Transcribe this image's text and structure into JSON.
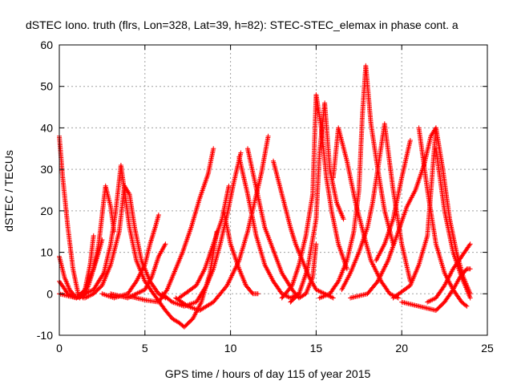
{
  "colors": {
    "series": "#ff0000",
    "grid": "#a0a0a0",
    "axis": "#000000"
  },
  "chart_data": {
    "type": "scatter",
    "title": "dSTEC Iono. truth (flrs, Lon=328, Lat=39, h=82): STEC-STEC_elemax in phase cont. a",
    "xlabel": "GPS time / hours of day 115 of year 2015",
    "ylabel": "dSTEC  / TECUs",
    "xlim": [
      0,
      25
    ],
    "ylim": [
      -10,
      60
    ],
    "xticks": [
      0,
      5,
      10,
      15,
      20,
      25
    ],
    "yticks": [
      -10,
      0,
      10,
      20,
      30,
      40,
      50,
      60
    ],
    "grid": true,
    "marker": "+",
    "series": [
      {
        "x": [
          0.0,
          0.2,
          0.5,
          0.8,
          1.1,
          1.4,
          1.7,
          2.0,
          2.3,
          2.5
        ],
        "y": [
          38,
          28,
          16,
          6,
          0,
          -1,
          2,
          6,
          10,
          13
        ]
      },
      {
        "x": [
          0.0,
          0.3,
          0.6,
          0.9,
          1.2,
          1.5,
          1.8,
          2.0
        ],
        "y": [
          9,
          4,
          1,
          -0.5,
          -1,
          1,
          7,
          14
        ]
      },
      {
        "x": [
          0.0,
          0.5,
          1.0,
          1.5,
          2.0,
          2.3,
          2.5,
          2.7,
          3.0,
          3.2
        ],
        "y": [
          3,
          0,
          -1,
          1,
          6,
          12,
          19,
          26,
          21,
          15
        ]
      },
      {
        "x": [
          0.0,
          1.0,
          2.0,
          2.6,
          3.0,
          3.3,
          3.6,
          3.8,
          4.1,
          4.5,
          5.0,
          5.5
        ],
        "y": [
          0,
          -1,
          1,
          5,
          12,
          20,
          31,
          25,
          16,
          8,
          3,
          0
        ]
      },
      {
        "x": [
          1.5,
          2.0,
          2.5,
          3.0,
          3.5,
          3.8,
          4.1,
          4.4,
          4.8,
          5.3,
          5.8,
          6.2
        ],
        "y": [
          -1,
          0,
          2,
          7,
          15,
          26,
          24,
          16,
          8,
          3,
          0,
          -1
        ]
      },
      {
        "x": [
          2.5,
          3.2,
          4.0,
          4.5,
          5.0,
          5.3,
          5.6,
          5.8
        ],
        "y": [
          0,
          -1,
          0,
          3,
          7,
          12,
          16,
          19
        ]
      },
      {
        "x": [
          3.0,
          4.0,
          5.0,
          5.4,
          5.8,
          6.2
        ],
        "y": [
          0,
          -1,
          1,
          4,
          9,
          12
        ]
      },
      {
        "x": [
          4.0,
          5.0,
          5.8,
          6.3,
          6.8,
          7.2,
          7.7,
          8.2,
          8.7,
          9.0
        ],
        "y": [
          -0.5,
          -1.5,
          -2,
          1,
          6,
          10,
          16,
          23,
          29,
          35
        ]
      },
      {
        "x": [
          5.5,
          6.2,
          6.6,
          7.0,
          7.3,
          7.8,
          8.3,
          8.8,
          9.2
        ],
        "y": [
          0,
          -4,
          -6,
          -7,
          -8,
          -6,
          -2,
          5,
          15
        ]
      },
      {
        "x": [
          6.0,
          6.6,
          7.3,
          8.0,
          8.6,
          9.0,
          9.4,
          9.8,
          10.2,
          10.6
        ],
        "y": [
          0,
          -2,
          -3,
          -2,
          2,
          6,
          12,
          19,
          27,
          34
        ]
      },
      {
        "x": [
          6.8,
          7.5,
          8.2,
          9.0,
          9.8,
          10.5,
          11.0,
          11.4,
          11.8,
          12.2
        ],
        "y": [
          -1,
          -3,
          -4,
          -2,
          2,
          8,
          15,
          22,
          29,
          38
        ]
      },
      {
        "x": [
          7.0,
          8.0,
          8.5,
          9.0,
          9.5,
          9.9
        ],
        "y": [
          -1,
          2,
          6,
          12,
          18,
          26
        ]
      },
      {
        "x": [
          9.6,
          10.0,
          10.5,
          10.9,
          11.3,
          11.6
        ],
        "y": [
          20,
          12,
          6,
          2,
          0,
          0
        ]
      },
      {
        "x": [
          10.5,
          11.0,
          11.5,
          12.0,
          12.5,
          13.0,
          13.5,
          14.0
        ],
        "y": [
          33,
          24,
          14,
          7,
          3,
          0,
          -1,
          0
        ]
      },
      {
        "x": [
          11.0,
          12.0,
          13.0,
          13.6,
          14.0,
          14.4,
          14.8,
          15.0
        ],
        "y": [
          35,
          16,
          5,
          1,
          -1,
          0,
          4,
          12
        ]
      },
      {
        "x": [
          12.5,
          13.0,
          13.5,
          13.8,
          14.2,
          14.6,
          15.0,
          15.5,
          16.0
        ],
        "y": [
          32,
          24,
          16,
          12,
          8,
          4,
          1,
          0,
          -1
        ]
      },
      {
        "x": [
          13.0,
          13.6,
          14.0,
          14.4,
          14.8,
          15.0,
          15.3,
          15.6,
          15.9,
          16.3,
          16.8
        ],
        "y": [
          -1,
          2,
          7,
          14,
          24,
          48,
          40,
          28,
          20,
          12,
          6
        ]
      },
      {
        "x": [
          13.5,
          14.0,
          14.5,
          15.0,
          15.2,
          15.5,
          15.8,
          16.2,
          16.6
        ],
        "y": [
          -2,
          0,
          6,
          18,
          34,
          46,
          30,
          22,
          18
        ]
      },
      {
        "x": [
          15.2,
          15.8,
          16.3,
          16.8,
          17.2,
          17.5,
          17.7,
          17.9,
          18.2,
          18.6,
          19.0,
          19.5
        ],
        "y": [
          -1,
          0,
          3,
          8,
          15,
          25,
          43,
          55,
          41,
          30,
          20,
          12
        ]
      },
      {
        "x": [
          16.0,
          16.3,
          16.8,
          17.3,
          17.8,
          18.2,
          18.8,
          19.3,
          19.8
        ],
        "y": [
          28,
          40,
          32,
          22,
          14,
          8,
          3,
          0,
          -1
        ]
      },
      {
        "x": [
          16.5,
          17.0,
          17.5,
          18.0,
          18.3,
          18.6,
          19.0,
          19.5,
          20.0,
          20.5
        ],
        "y": [
          1,
          5,
          10,
          16,
          22,
          30,
          41,
          25,
          12,
          3
        ]
      },
      {
        "x": [
          17.0,
          18.0,
          18.6,
          19.2,
          19.8,
          20.3,
          20.8,
          21.3,
          21.7,
          22.0
        ],
        "y": [
          -1,
          0,
          3,
          8,
          15,
          21,
          25,
          31,
          38,
          40
        ]
      },
      {
        "x": [
          18.5,
          19.0,
          19.5,
          20.0,
          20.5
        ],
        "y": [
          8,
          12,
          18,
          28,
          37
        ]
      },
      {
        "x": [
          19.5,
          20.5,
          21.0,
          21.5,
          22.0,
          22.4,
          22.8,
          23.2,
          23.6,
          24.0
        ],
        "y": [
          -1,
          2,
          7,
          14,
          40,
          30,
          18,
          10,
          4,
          0
        ]
      },
      {
        "x": [
          21.0,
          21.5,
          22.0,
          22.5,
          23.0,
          23.5,
          23.8
        ],
        "y": [
          40,
          25,
          12,
          5,
          1,
          -2,
          -3
        ]
      },
      {
        "x": [
          20.0,
          21.0,
          22.0,
          22.5,
          23.0,
          23.4,
          23.8,
          24.0
        ],
        "y": [
          -2,
          -3,
          -4,
          -2,
          1,
          4,
          6,
          6
        ]
      },
      {
        "x": [
          21.5,
          22.0,
          22.5,
          23.0,
          23.5,
          24.0
        ],
        "y": [
          -2,
          -1,
          2,
          6,
          9,
          12
        ]
      },
      {
        "x": [
          22.0,
          22.5,
          23.0,
          23.5,
          24.0
        ],
        "y": [
          35,
          20,
          10,
          4,
          -1
        ]
      }
    ]
  }
}
